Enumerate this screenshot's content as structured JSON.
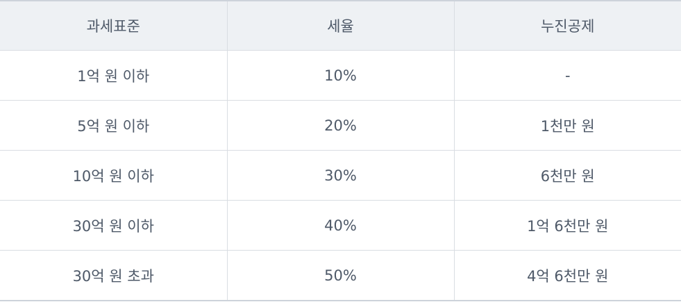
{
  "table": {
    "headers": [
      "과세표준",
      "세율",
      "누진공제"
    ],
    "rows": [
      [
        "1억 원 이하",
        "10%",
        "-"
      ],
      [
        "5억 원 이하",
        "20%",
        "1천만 원"
      ],
      [
        "10억 원 이하",
        "30%",
        "6천만 원"
      ],
      [
        "30억 원 이하",
        "40%",
        "1억 6천만 원"
      ],
      [
        "30억 원 초과",
        "50%",
        "4억 6천만 원"
      ]
    ]
  }
}
